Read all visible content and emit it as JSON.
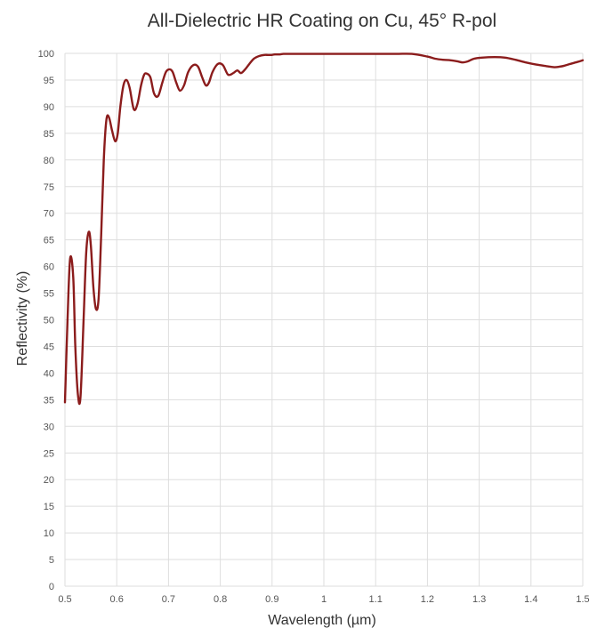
{
  "chart_data": {
    "type": "line",
    "title": "All-Dielectric HR Coating on Cu, 45° R-pol",
    "xlabel": "Wavelength (µm)",
    "ylabel": "Reflectivity (%)",
    "xlim": [
      0.5,
      1.5
    ],
    "ylim": [
      0,
      100
    ],
    "x_ticks": [
      "0.5",
      "0.6",
      "0.7",
      "0.8",
      "0.9",
      "1",
      "1.1",
      "1.2",
      "1.3",
      "1.4",
      "1.5"
    ],
    "y_ticks": [
      "0",
      "5",
      "10",
      "15",
      "20",
      "25",
      "30",
      "35",
      "40",
      "45",
      "50",
      "55",
      "60",
      "65",
      "70",
      "75",
      "80",
      "85",
      "90",
      "95",
      "100"
    ],
    "grid": true,
    "legend": "none",
    "series": [
      {
        "color": "#8b1c1c",
        "x": [
          0.5,
          0.505,
          0.51,
          0.516,
          0.52,
          0.525,
          0.53,
          0.536,
          0.541,
          0.546,
          0.55,
          0.555,
          0.56,
          0.565,
          0.57,
          0.575,
          0.58,
          0.585,
          0.591,
          0.597,
          0.602,
          0.607,
          0.613,
          0.619,
          0.625,
          0.633,
          0.64,
          0.647,
          0.653,
          0.658,
          0.665,
          0.672,
          0.68,
          0.688,
          0.695,
          0.702,
          0.708,
          0.715,
          0.722,
          0.73,
          0.738,
          0.748,
          0.757,
          0.765,
          0.772,
          0.778,
          0.785,
          0.795,
          0.805,
          0.815,
          0.825,
          0.833,
          0.84,
          0.848,
          0.856,
          0.865,
          0.875,
          0.885,
          0.892,
          0.899,
          0.905,
          0.913,
          0.922,
          0.93,
          0.94,
          0.95,
          0.958,
          0.966,
          0.975,
          0.99,
          1.02,
          1.06,
          1.1,
          1.14,
          1.17,
          1.2,
          1.215,
          1.23,
          1.245,
          1.258,
          1.268,
          1.278,
          1.29,
          1.305,
          1.33,
          1.35,
          1.37,
          1.39,
          1.41,
          1.43,
          1.445,
          1.455,
          1.465,
          1.475,
          1.49,
          1.5
        ],
        "y": [
          34.5,
          50.0,
          61.5,
          58.0,
          45.0,
          36.0,
          35.5,
          50.0,
          62.5,
          66.5,
          64.0,
          56.0,
          52.0,
          54.0,
          66.0,
          80.0,
          87.5,
          88.0,
          85.5,
          83.5,
          85.0,
          90.0,
          94.0,
          95.0,
          93.5,
          89.5,
          90.5,
          94.0,
          96.0,
          96.2,
          95.5,
          92.5,
          92.0,
          94.5,
          96.5,
          97.0,
          96.5,
          94.5,
          93.0,
          94.0,
          96.5,
          97.8,
          97.5,
          95.5,
          94.0,
          94.5,
          96.5,
          98.0,
          97.8,
          96.0,
          96.3,
          96.8,
          96.3,
          97.0,
          98.0,
          99.0,
          99.5,
          99.7,
          99.7,
          99.7,
          99.8,
          99.8,
          99.9,
          99.9,
          99.9,
          99.9,
          99.9,
          99.9,
          99.9,
          99.9,
          99.9,
          99.9,
          99.9,
          99.9,
          99.9,
          99.4,
          99.0,
          98.8,
          98.7,
          98.5,
          98.3,
          98.5,
          99.0,
          99.2,
          99.3,
          99.2,
          98.8,
          98.3,
          97.9,
          97.6,
          97.4,
          97.5,
          97.7,
          98.0,
          98.4,
          98.7
        ]
      }
    ]
  }
}
